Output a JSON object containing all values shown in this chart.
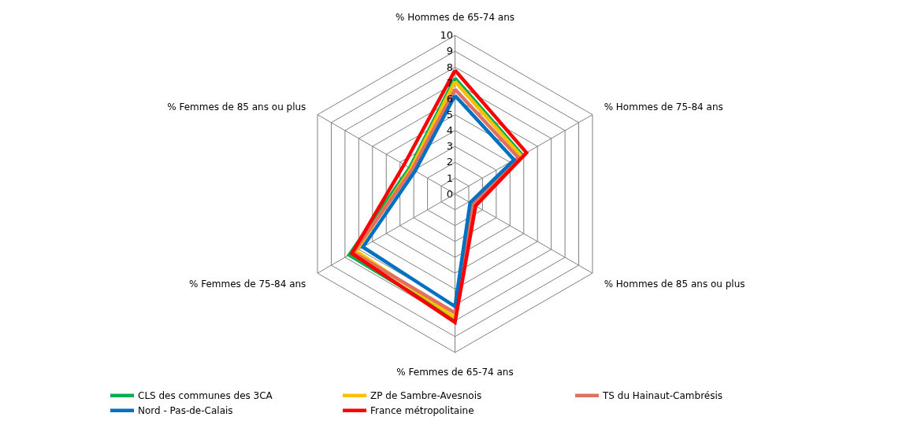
{
  "chart_data": {
    "type": "radar",
    "categories": [
      "% Hommes de 65-74 ans",
      "% Hommes de 75-84 ans",
      "% Hommes de 85 ans ou plus",
      "% Femmes de 65-74 ans",
      "% Femmes de 75-84 ans",
      "% Femmes de 85 ans ou plus"
    ],
    "series": [
      {
        "name": "CLS des communes des 3CA",
        "color": "#00b050",
        "values": [
          7.3,
          4.9,
          1.3,
          7.9,
          7.7,
          3.3
        ]
      },
      {
        "name": "ZP de Sambre-Avesnois",
        "color": "#ffc000",
        "values": [
          7.1,
          4.8,
          1.3,
          7.8,
          7.2,
          3.2
        ]
      },
      {
        "name": "TS du Hainaut-Cambrésis",
        "color": "#e07060",
        "values": [
          6.6,
          4.6,
          1.3,
          7.5,
          7.4,
          3.1
        ]
      },
      {
        "name": "Nord - Pas-de-Calais",
        "color": "#0070c0",
        "values": [
          6.2,
          4.3,
          1.1,
          7.1,
          6.7,
          2.9
        ]
      },
      {
        "name": "France métropolitaine",
        "color": "#ff0000",
        "values": [
          7.8,
          5.2,
          1.5,
          8.1,
          7.5,
          3.7
        ]
      }
    ],
    "ylim": [
      0,
      10
    ],
    "yticks": [
      0,
      1,
      2,
      3,
      4,
      5,
      6,
      7,
      8,
      9,
      10
    ],
    "grid": true,
    "legend": "bottom",
    "marker": "none",
    "line_style": "solid"
  }
}
